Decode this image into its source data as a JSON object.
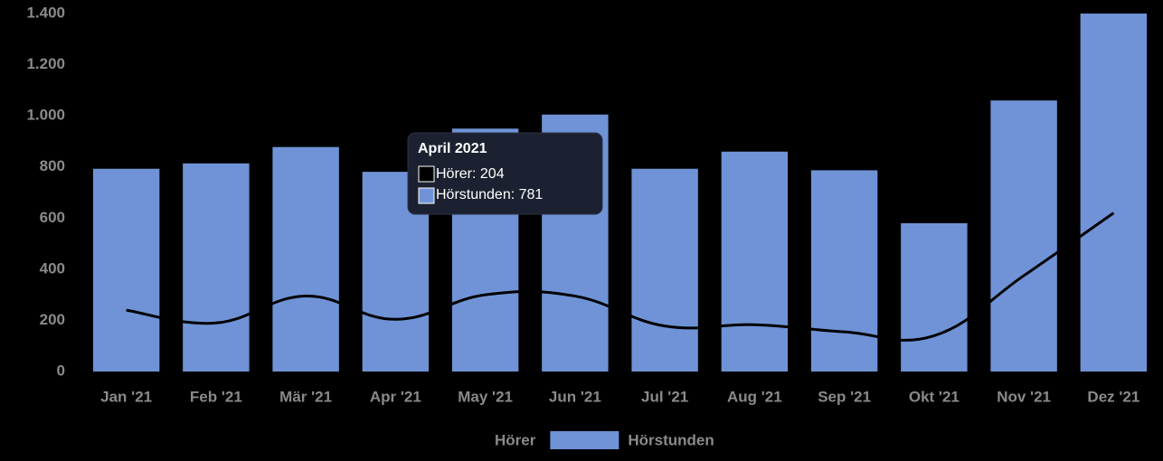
{
  "chart_data": {
    "type": "bar-line",
    "categories": [
      "Jan '21",
      "Feb '21",
      "Mär '21",
      "Apr '21",
      "May '21",
      "Jun '21",
      "Jul '21",
      "Aug '21",
      "Sep '21",
      "Okt '21",
      "Nov '21",
      "Dez '21"
    ],
    "series": [
      {
        "name": "Hörer",
        "type": "line",
        "color": "#000000",
        "values": [
          240,
          190,
          295,
          204,
          300,
          295,
          178,
          183,
          155,
          140,
          375,
          620
        ]
      },
      {
        "name": "Hörstunden",
        "type": "bar",
        "color": "#6f93d6",
        "values": [
          793,
          814,
          878,
          781,
          950,
          1005,
          793,
          860,
          787,
          580,
          1060,
          1400
        ]
      }
    ],
    "ylim": [
      0,
      1400
    ],
    "yticks": [
      0,
      200,
      400,
      600,
      800,
      {
        "value": 1000,
        "label": "1.000"
      },
      {
        "value": 1200,
        "label": "1.200"
      },
      {
        "value": 1400,
        "label": "1.400"
      }
    ],
    "grid": false,
    "legend": "bottom",
    "tooltip": {
      "title": "April 2021",
      "items": [
        "Hörer: 204",
        "Hörstunden: 781"
      ]
    }
  }
}
